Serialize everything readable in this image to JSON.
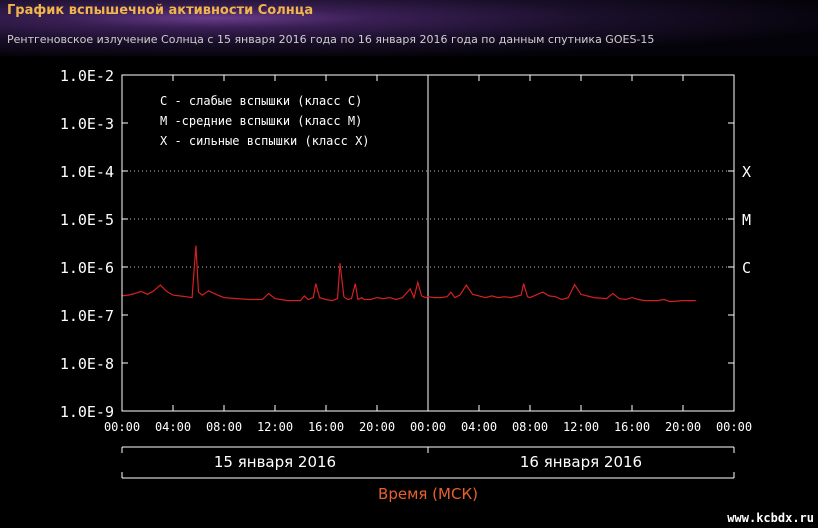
{
  "header": {
    "title": "График вспышечной активности Солнца",
    "subtitle": "Рентгеновское излучение Солнца с 15 января 2016 года по 16 января 2016 года по данным спутника GOES-15"
  },
  "watermark": "www.kcbdx.ru",
  "chart_data": {
    "type": "line",
    "y_scale": "log",
    "ylim": [
      "1.0E-9",
      "1.0E-2"
    ],
    "y_ticks": [
      "1.0E-2",
      "1.0E-3",
      "1.0E-4",
      "1.0E-5",
      "1.0E-6",
      "1.0E-7",
      "1.0E-8",
      "1.0E-9"
    ],
    "xlim_hours": [
      0,
      48
    ],
    "x_ticks": [
      "00:00",
      "04:00",
      "08:00",
      "12:00",
      "16:00",
      "20:00",
      "00:00",
      "04:00",
      "08:00",
      "12:00",
      "16:00",
      "20:00",
      "00:00"
    ],
    "date_labels": [
      "15 января 2016",
      "16 января 2016"
    ],
    "xlabel": "Время (МСК)",
    "legend": [
      "С - слабые вспышки (класс С)",
      "М -средние вспышки (класс М)",
      "Х - сильные вспышки (класс Х)"
    ],
    "legend_position": "top-left",
    "class_lines": [
      {
        "label": "X",
        "value": "1.0E-4"
      },
      {
        "label": "M",
        "value": "1.0E-5"
      },
      {
        "label": "C",
        "value": "1.0E-6"
      }
    ],
    "series_color": "#d42020",
    "axis_color": "#ffffff",
    "series": [
      {
        "hours": [
          0,
          0.5,
          1,
          1.5,
          2,
          2.5,
          3,
          3.5,
          4,
          4.5,
          5,
          5.5,
          5.8,
          6,
          6.3,
          6.8,
          7.5,
          8,
          9,
          10,
          11,
          11.5,
          12,
          13,
          14,
          14.3,
          14.6,
          15,
          15.2,
          15.5,
          16,
          16.5,
          16.9,
          17.1,
          17.4,
          17.7,
          18,
          18.3,
          18.5,
          18.8,
          19,
          19.5,
          20,
          20.5,
          21,
          21.5,
          22,
          22.6,
          22.9,
          23.2,
          23.5,
          23.8,
          24,
          24.5,
          25,
          25.5,
          25.8,
          26.1,
          26.5,
          27,
          27.5,
          28,
          28.5,
          29,
          29.5,
          30,
          30.5,
          31.3,
          31.5,
          31.8,
          32,
          33,
          33.5,
          34,
          34.5,
          35,
          35.5,
          36,
          37,
          38,
          38.5,
          39,
          39.5,
          40,
          40.5,
          41,
          42,
          42.5,
          43,
          44,
          45
        ],
        "values": [
          2.5e-07,
          2.6e-07,
          2.8e-07,
          3.1e-07,
          2.7e-07,
          3.2e-07,
          4.2e-07,
          3.1e-07,
          2.6e-07,
          2.5e-07,
          2.4e-07,
          2.3e-07,
          2.8e-06,
          3e-07,
          2.6e-07,
          3.2e-07,
          2.6e-07,
          2.3e-07,
          2.2e-07,
          2.1e-07,
          2.1e-07,
          2.8e-07,
          2.2e-07,
          2e-07,
          2e-07,
          2.5e-07,
          2.1e-07,
          2.3e-07,
          4.5e-07,
          2.3e-07,
          2.1e-07,
          2e-07,
          2.2e-07,
          1.2e-06,
          2.4e-07,
          2.1e-07,
          2.2e-07,
          4.5e-07,
          2.1e-07,
          2.3e-07,
          2.1e-07,
          2.1e-07,
          2.3e-07,
          2.2e-07,
          2.3e-07,
          2.1e-07,
          2.3e-07,
          3.5e-07,
          2.3e-07,
          4.8e-07,
          2.5e-07,
          2.3e-07,
          2.4e-07,
          2.3e-07,
          2.3e-07,
          2.4e-07,
          3e-07,
          2.3e-07,
          2.6e-07,
          4.2e-07,
          2.7e-07,
          2.5e-07,
          2.3e-07,
          2.5e-07,
          2.3e-07,
          2.4e-07,
          2.3e-07,
          2.6e-07,
          4.5e-07,
          2.4e-07,
          2.3e-07,
          3e-07,
          2.5e-07,
          2.4e-07,
          2.1e-07,
          2.3e-07,
          4.3e-07,
          2.7e-07,
          2.3e-07,
          2.2e-07,
          2.8e-07,
          2.2e-07,
          2.1e-07,
          2.3e-07,
          2.1e-07,
          2e-07,
          2e-07,
          2.1e-07,
          1.9e-07,
          2e-07,
          2e-07
        ]
      }
    ]
  }
}
